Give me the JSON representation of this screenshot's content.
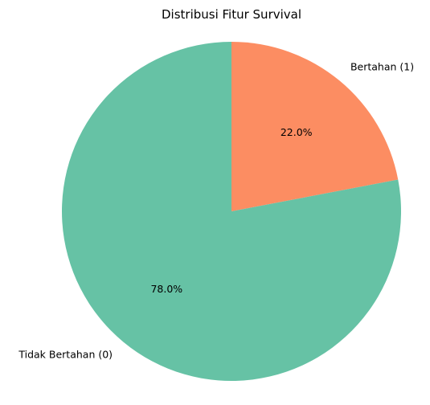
{
  "chart_data": {
    "type": "pie",
    "title": "Distribusi Fitur Survival",
    "start_angle_deg": 90,
    "direction": "clockwise",
    "slices": [
      {
        "label": "Bertahan (1)",
        "value": 22.0,
        "pct_text": "22.0%",
        "color": "#fc8d62"
      },
      {
        "label": "Tidak Bertahan (0)",
        "value": 78.0,
        "pct_text": "78.0%",
        "color": "#66c2a5"
      }
    ],
    "legend": "none"
  }
}
